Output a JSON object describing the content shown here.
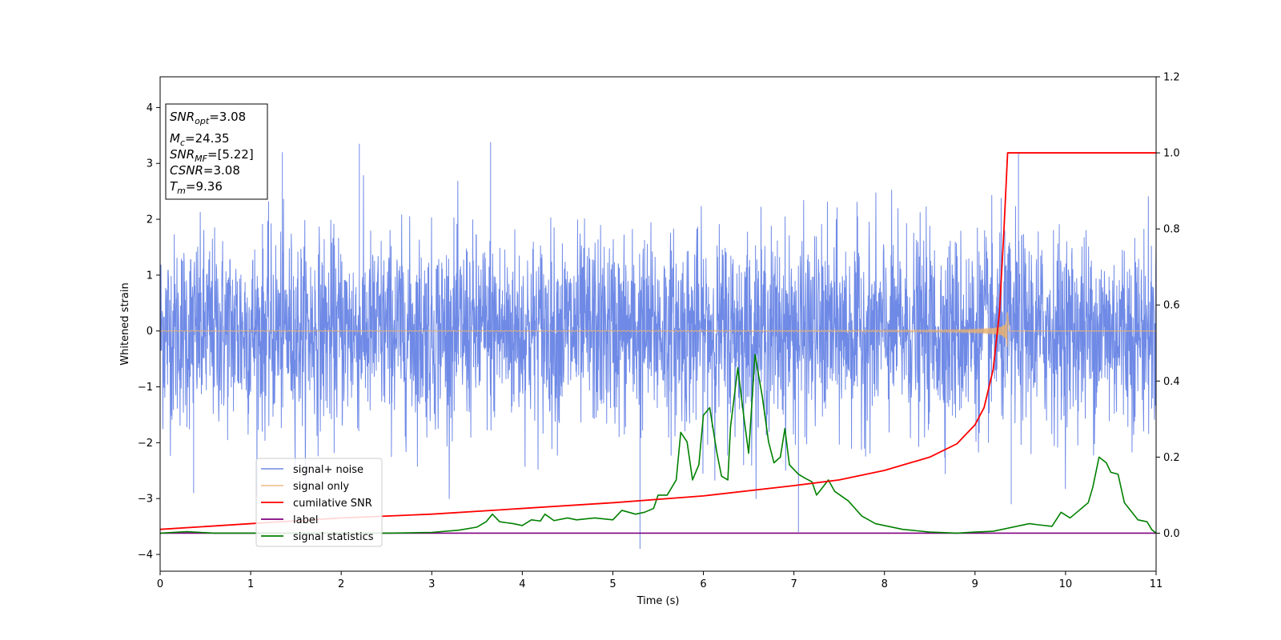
{
  "chart_data": {
    "type": "line",
    "xlabel": "Time (s)",
    "ylabel": "Whitened strain",
    "xlim": [
      0,
      11
    ],
    "ylim": [
      -4.3,
      4.55
    ],
    "y2lim": [
      -0.1,
      1.2
    ],
    "x_ticks": [
      0,
      1,
      2,
      3,
      4,
      5,
      6,
      7,
      8,
      9,
      10,
      11
    ],
    "y_ticks": [
      -4,
      -3,
      -2,
      -1,
      0,
      1,
      2,
      3,
      4
    ],
    "y2_ticks": [
      "0.0",
      "0.2",
      "0.4",
      "0.6",
      "0.8",
      "1.0",
      "1.2"
    ],
    "y2_tick_values": [
      0.0,
      0.2,
      0.4,
      0.6,
      0.8,
      1.0,
      1.2
    ],
    "grid": false,
    "legend_position": "lower-left",
    "series": [
      {
        "name": "signal+ noise",
        "axis": "left",
        "color": "#6f8ae6",
        "kind": "noise",
        "typical_range": [
          -2.3,
          2.3
        ],
        "extremes": [
          [
            0.37,
            -2.9
          ],
          [
            1.35,
            3.2
          ],
          [
            2.2,
            3.35
          ],
          [
            3.65,
            3.38
          ],
          [
            5.3,
            -3.9
          ],
          [
            7.05,
            -3.6
          ],
          [
            9.48,
            3.2
          ],
          [
            9.4,
            -3.1
          ]
        ]
      },
      {
        "name": "signal only",
        "axis": "left",
        "color": "#e8b070",
        "kind": "chirp",
        "merger_time": 9.36,
        "peak_amplitude": 0.65
      },
      {
        "name": "cumilative SNR",
        "axis": "right",
        "color": "#ff0000",
        "points": [
          [
            0,
            0.01
          ],
          [
            1,
            0.025
          ],
          [
            2,
            0.04
          ],
          [
            3,
            0.05
          ],
          [
            4,
            0.065
          ],
          [
            5,
            0.08
          ],
          [
            6,
            0.098
          ],
          [
            7,
            0.125
          ],
          [
            7.5,
            0.14
          ],
          [
            8,
            0.165
          ],
          [
            8.5,
            0.2
          ],
          [
            8.8,
            0.235
          ],
          [
            9.0,
            0.285
          ],
          [
            9.1,
            0.33
          ],
          [
            9.2,
            0.43
          ],
          [
            9.27,
            0.58
          ],
          [
            9.32,
            0.8
          ],
          [
            9.36,
            1.0
          ],
          [
            11,
            1.0
          ]
        ]
      },
      {
        "name": "label",
        "axis": "right",
        "color": "#800080",
        "points": [
          [
            0,
            0.0
          ],
          [
            11,
            0.0
          ]
        ]
      },
      {
        "name": "signal statistics",
        "axis": "right",
        "color": "#008000",
        "points": [
          [
            0,
            0.0
          ],
          [
            0.3,
            0.004
          ],
          [
            0.6,
            0.0
          ],
          [
            1.5,
            0.0
          ],
          [
            2.5,
            0.0
          ],
          [
            3.0,
            0.002
          ],
          [
            3.3,
            0.008
          ],
          [
            3.5,
            0.016
          ],
          [
            3.6,
            0.03
          ],
          [
            3.67,
            0.05
          ],
          [
            3.75,
            0.03
          ],
          [
            3.9,
            0.025
          ],
          [
            4.0,
            0.02
          ],
          [
            4.1,
            0.035
          ],
          [
            4.2,
            0.032
          ],
          [
            4.25,
            0.05
          ],
          [
            4.35,
            0.033
          ],
          [
            4.5,
            0.04
          ],
          [
            4.6,
            0.035
          ],
          [
            4.8,
            0.04
          ],
          [
            5.0,
            0.035
          ],
          [
            5.1,
            0.06
          ],
          [
            5.25,
            0.05
          ],
          [
            5.35,
            0.055
          ],
          [
            5.45,
            0.065
          ],
          [
            5.5,
            0.1
          ],
          [
            5.6,
            0.1
          ],
          [
            5.7,
            0.14
          ],
          [
            5.75,
            0.265
          ],
          [
            5.82,
            0.24
          ],
          [
            5.88,
            0.14
          ],
          [
            5.95,
            0.18
          ],
          [
            6.0,
            0.31
          ],
          [
            6.07,
            0.33
          ],
          [
            6.15,
            0.21
          ],
          [
            6.2,
            0.15
          ],
          [
            6.27,
            0.14
          ],
          [
            6.3,
            0.28
          ],
          [
            6.38,
            0.435
          ],
          [
            6.45,
            0.3
          ],
          [
            6.5,
            0.21
          ],
          [
            6.57,
            0.47
          ],
          [
            6.65,
            0.36
          ],
          [
            6.72,
            0.24
          ],
          [
            6.78,
            0.185
          ],
          [
            6.85,
            0.2
          ],
          [
            6.9,
            0.275
          ],
          [
            6.95,
            0.18
          ],
          [
            7.05,
            0.155
          ],
          [
            7.12,
            0.145
          ],
          [
            7.2,
            0.135
          ],
          [
            7.25,
            0.1
          ],
          [
            7.3,
            0.115
          ],
          [
            7.38,
            0.14
          ],
          [
            7.45,
            0.11
          ],
          [
            7.6,
            0.085
          ],
          [
            7.75,
            0.045
          ],
          [
            7.9,
            0.025
          ],
          [
            8.2,
            0.01
          ],
          [
            8.5,
            0.003
          ],
          [
            8.8,
            0.0
          ],
          [
            9.0,
            0.003
          ],
          [
            9.2,
            0.005
          ],
          [
            9.5,
            0.02
          ],
          [
            9.6,
            0.025
          ],
          [
            9.7,
            0.022
          ],
          [
            9.85,
            0.018
          ],
          [
            9.95,
            0.055
          ],
          [
            10.05,
            0.04
          ],
          [
            10.15,
            0.06
          ],
          [
            10.25,
            0.08
          ],
          [
            10.3,
            0.12
          ],
          [
            10.37,
            0.2
          ],
          [
            10.45,
            0.185
          ],
          [
            10.5,
            0.16
          ],
          [
            10.58,
            0.155
          ],
          [
            10.65,
            0.08
          ],
          [
            10.8,
            0.035
          ],
          [
            10.9,
            0.03
          ],
          [
            10.95,
            0.01
          ],
          [
            11.0,
            0.0
          ]
        ]
      }
    ],
    "annotation": {
      "snr_opt": "3.08",
      "mc": "24.35",
      "snr_mf": "[5.22]",
      "csnr": "3.08",
      "tm": "9.36"
    }
  }
}
